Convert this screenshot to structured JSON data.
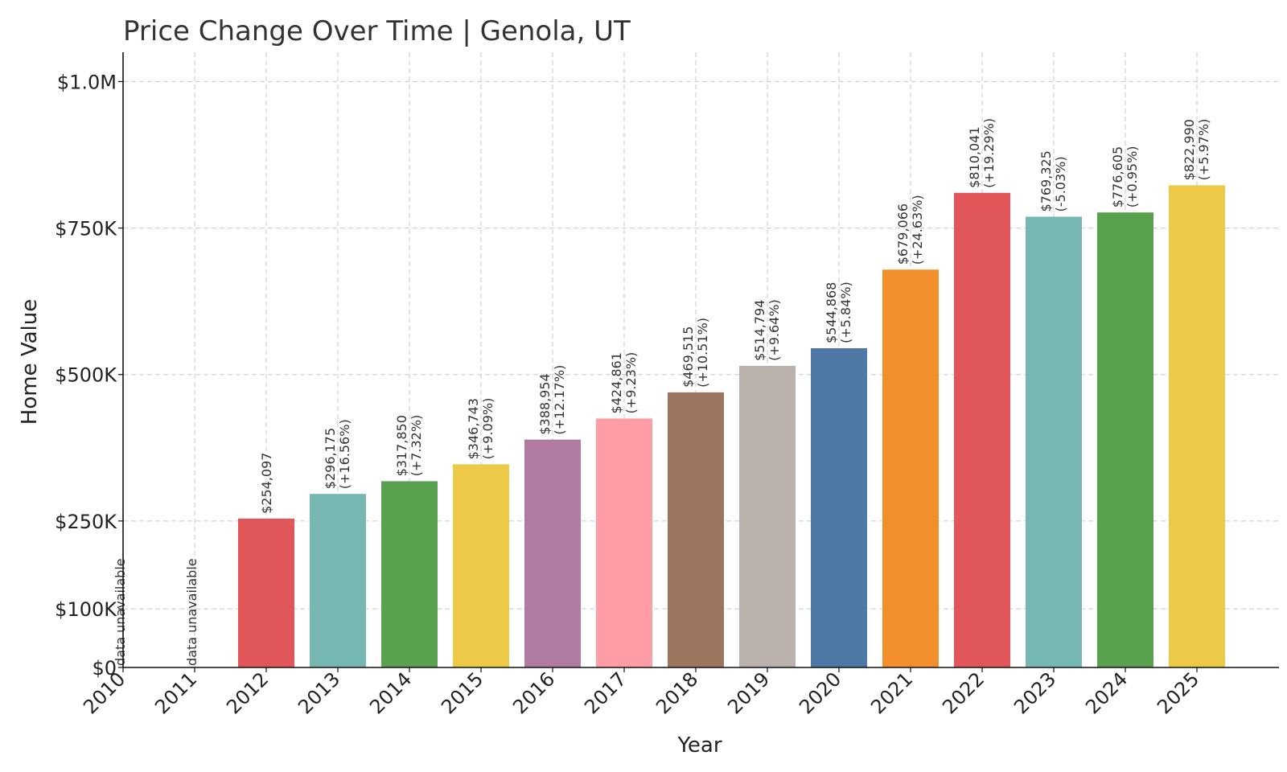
{
  "chart_data": {
    "type": "bar",
    "title": "Price Change Over Time | Genola, UT",
    "xlabel": "Year",
    "ylabel": "Home Value",
    "categories": [
      "2010",
      "2011",
      "2012",
      "2013",
      "2014",
      "2015",
      "2016",
      "2017",
      "2018",
      "2019",
      "2020",
      "2021",
      "2022",
      "2023",
      "2024",
      "2025"
    ],
    "values": [
      null,
      null,
      254097,
      296175,
      317850,
      346743,
      388954,
      424861,
      469515,
      514794,
      544868,
      679066,
      810041,
      769325,
      776605,
      822990
    ],
    "value_labels": [
      "",
      "",
      "$254,097",
      "$296,175",
      "$317,850",
      "$346,743",
      "$388,954",
      "$424,861",
      "$469,515",
      "$514,794",
      "$544,868",
      "$679,066",
      "$810,041",
      "$769,325",
      "$776,605",
      "$822,990"
    ],
    "change_labels": [
      "",
      "",
      "",
      "(+16.56%)",
      "(+7.32%)",
      "(+9.09%)",
      "(+12.17%)",
      "(+9.23%)",
      "(+10.51%)",
      "(+9.64%)",
      "(+5.84%)",
      "(+24.63%)",
      "(+19.29%)",
      "(-5.03%)",
      "(+0.95%)",
      "(+5.97%)"
    ],
    "unavailable_label": "data unavailable",
    "colors": [
      "#e15759",
      "#e15759",
      "#e15759",
      "#76b7b2",
      "#59a14f",
      "#edc948",
      "#b07aa1",
      "#ff9da7",
      "#9c755f",
      "#bab0ac",
      "#4e79a7",
      "#f28e2b",
      "#e15759",
      "#76b7b2",
      "#59a14f",
      "#edc948"
    ],
    "yticks": [
      0,
      100000,
      250000,
      500000,
      750000,
      1000000
    ],
    "ytick_labels": [
      "$0",
      "$100K",
      "$250K",
      "$500K",
      "$750K",
      "$1.0M"
    ],
    "ylim": [
      0,
      1050000
    ],
    "grid": true,
    "legend": "none"
  }
}
